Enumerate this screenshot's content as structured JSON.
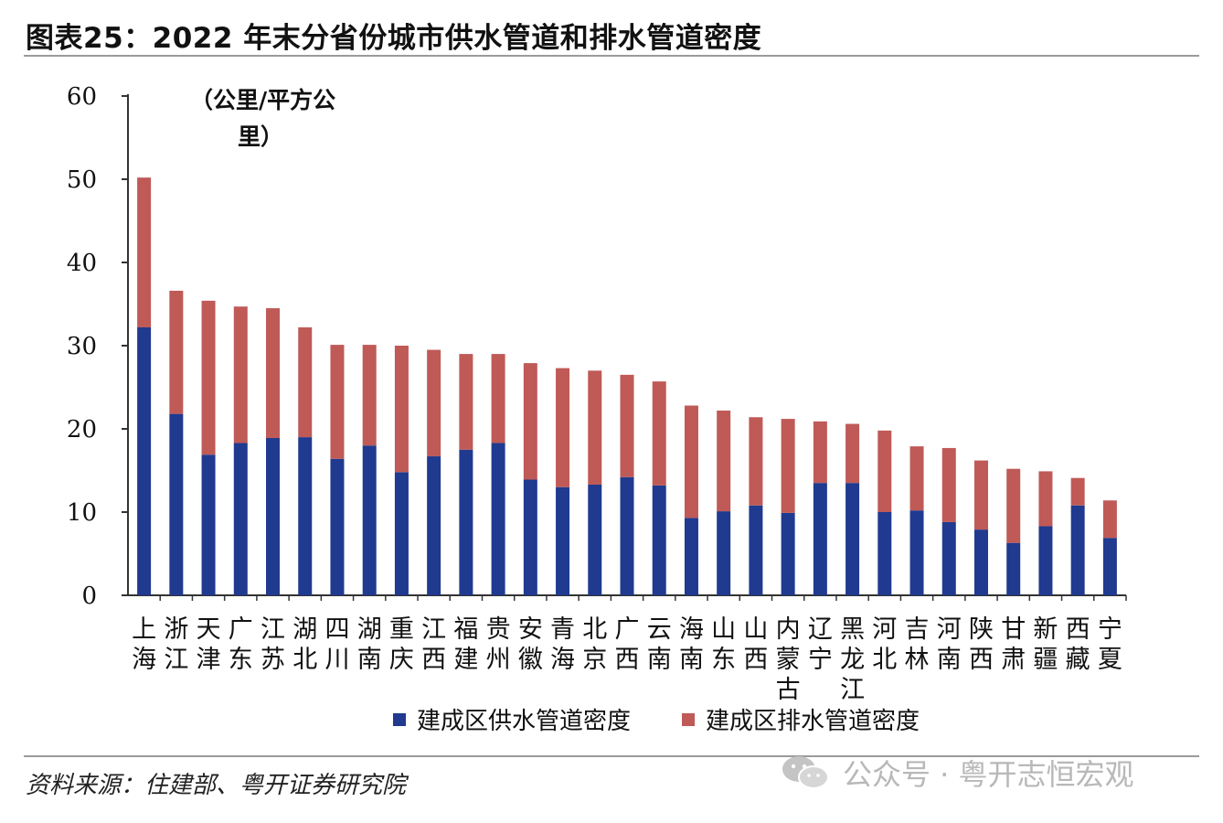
{
  "title": "图表25：2022 年末分省份城市供水管道和排水管道密度",
  "unit_line1": "（公里/平方公",
  "unit_line2": "里）",
  "source": "资料来源：住建部、粤开证券研究院",
  "watermark": "公众号 · 粤开志恒宏观",
  "colors": {
    "supply": "#1f3a8f",
    "drain": "#bf5a57"
  },
  "chart_data": {
    "type": "bar",
    "stacked": true,
    "title": "2022 年末分省份城市供水管道和排水管道密度",
    "ylabel": "（公里/平方公里）",
    "ylim": [
      0,
      60
    ],
    "yticks": [
      0,
      10,
      20,
      30,
      40,
      50,
      60
    ],
    "categories": [
      [
        "上",
        "海"
      ],
      [
        "浙",
        "江"
      ],
      [
        "天",
        "津"
      ],
      [
        "广",
        "东"
      ],
      [
        "江",
        "苏"
      ],
      [
        "湖",
        "北"
      ],
      [
        "四",
        "川"
      ],
      [
        "湖",
        "南"
      ],
      [
        "重",
        "庆"
      ],
      [
        "江",
        "西"
      ],
      [
        "福",
        "建"
      ],
      [
        "贵",
        "州"
      ],
      [
        "安",
        "徽"
      ],
      [
        "青",
        "海"
      ],
      [
        "北",
        "京"
      ],
      [
        "广",
        "西"
      ],
      [
        "云",
        "南"
      ],
      [
        "海",
        "南"
      ],
      [
        "山",
        "东"
      ],
      [
        "山",
        "西"
      ],
      [
        "内",
        "蒙",
        "古"
      ],
      [
        "辽",
        "宁"
      ],
      [
        "黑",
        "龙",
        "江"
      ],
      [
        "河",
        "北"
      ],
      [
        "吉",
        "林"
      ],
      [
        "河",
        "南"
      ],
      [
        "陕",
        "西"
      ],
      [
        "甘",
        "肃"
      ],
      [
        "新",
        "疆"
      ],
      [
        "西",
        "藏"
      ],
      [
        "宁",
        "夏"
      ]
    ],
    "series": [
      {
        "name": "建成区供水管道密度",
        "values": [
          32.2,
          21.8,
          16.9,
          18.3,
          18.9,
          19.0,
          16.4,
          18.0,
          14.8,
          16.7,
          17.5,
          18.3,
          13.9,
          13.0,
          13.3,
          14.2,
          13.2,
          9.3,
          10.1,
          10.8,
          9.9,
          13.5,
          13.5,
          10.0,
          10.2,
          8.8,
          7.9,
          6.3,
          8.3,
          10.8,
          6.9
        ]
      },
      {
        "name": "建成区排水管道密度",
        "values": [
          18.0,
          14.8,
          18.5,
          16.4,
          15.6,
          13.2,
          13.7,
          12.1,
          15.2,
          12.8,
          11.5,
          10.7,
          14.0,
          14.3,
          13.7,
          12.3,
          12.5,
          13.5,
          12.1,
          10.6,
          11.3,
          7.4,
          7.1,
          9.8,
          7.7,
          8.9,
          8.3,
          8.9,
          6.6,
          3.3,
          4.5
        ]
      }
    ],
    "legend_position": "bottom"
  }
}
